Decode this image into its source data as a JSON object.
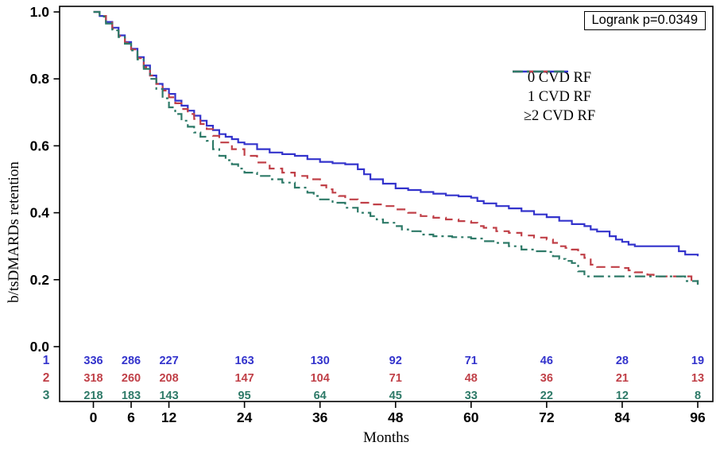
{
  "annotation": {
    "logrank_label": "Logrank p=0.0349"
  },
  "chart_data": {
    "type": "line",
    "subtype": "kaplan-meier-step-curves",
    "title": "",
    "xlabel": "Months",
    "ylabel": "b/tsDMARDs retention",
    "xlim": [
      0,
      96
    ],
    "ylim": [
      0.0,
      1.0
    ],
    "x_ticks": [
      0,
      6,
      12,
      24,
      36,
      48,
      60,
      72,
      84,
      96
    ],
    "y_ticks": [
      1.0,
      0.8,
      0.6,
      0.4,
      0.2,
      0.0
    ],
    "grid": "off",
    "legend_position": "upper-right-inside",
    "annotation": "Logrank p=0.0349",
    "series": [
      {
        "name": "0 CVD RF",
        "color": "#3333cc",
        "dash": "solid",
        "points": [
          [
            0,
            1.0
          ],
          [
            1,
            0.988
          ],
          [
            2,
            0.97
          ],
          [
            3,
            0.953
          ],
          [
            4,
            0.93
          ],
          [
            5,
            0.91
          ],
          [
            6,
            0.89
          ],
          [
            7,
            0.865
          ],
          [
            8,
            0.84
          ],
          [
            9,
            0.81
          ],
          [
            10,
            0.785
          ],
          [
            11,
            0.77
          ],
          [
            12,
            0.755
          ],
          [
            13,
            0.735
          ],
          [
            14,
            0.72
          ],
          [
            15,
            0.705
          ],
          [
            16,
            0.69
          ],
          [
            17,
            0.675
          ],
          [
            18,
            0.66
          ],
          [
            19,
            0.647
          ],
          [
            20,
            0.635
          ],
          [
            21,
            0.627
          ],
          [
            22,
            0.62
          ],
          [
            23,
            0.61
          ],
          [
            24,
            0.605
          ],
          [
            26,
            0.59
          ],
          [
            28,
            0.58
          ],
          [
            30,
            0.575
          ],
          [
            32,
            0.57
          ],
          [
            34,
            0.56
          ],
          [
            36,
            0.552
          ],
          [
            38,
            0.548
          ],
          [
            40,
            0.545
          ],
          [
            42,
            0.53
          ],
          [
            43,
            0.515
          ],
          [
            44,
            0.5
          ],
          [
            46,
            0.487
          ],
          [
            48,
            0.473
          ],
          [
            50,
            0.468
          ],
          [
            52,
            0.462
          ],
          [
            54,
            0.457
          ],
          [
            56,
            0.452
          ],
          [
            58,
            0.449
          ],
          [
            60,
            0.445
          ],
          [
            61,
            0.435
          ],
          [
            62,
            0.428
          ],
          [
            64,
            0.42
          ],
          [
            66,
            0.413
          ],
          [
            68,
            0.405
          ],
          [
            70,
            0.395
          ],
          [
            72,
            0.387
          ],
          [
            74,
            0.376
          ],
          [
            76,
            0.366
          ],
          [
            78,
            0.36
          ],
          [
            79,
            0.35
          ],
          [
            80,
            0.344
          ],
          [
            82,
            0.33
          ],
          [
            83,
            0.32
          ],
          [
            84,
            0.313
          ],
          [
            85,
            0.305
          ],
          [
            86,
            0.3
          ],
          [
            92,
            0.3
          ],
          [
            93,
            0.285
          ],
          [
            94,
            0.275
          ],
          [
            96,
            0.27
          ]
        ]
      },
      {
        "name": "1 CVD RF",
        "color": "#c04048",
        "dash": "dashed",
        "points": [
          [
            0,
            1.0
          ],
          [
            1,
            0.988
          ],
          [
            2,
            0.968
          ],
          [
            3,
            0.95
          ],
          [
            4,
            0.928
          ],
          [
            5,
            0.908
          ],
          [
            6,
            0.888
          ],
          [
            7,
            0.862
          ],
          [
            8,
            0.835
          ],
          [
            9,
            0.81
          ],
          [
            10,
            0.785
          ],
          [
            11,
            0.765
          ],
          [
            12,
            0.745
          ],
          [
            13,
            0.727
          ],
          [
            14,
            0.71
          ],
          [
            15,
            0.695
          ],
          [
            16,
            0.68
          ],
          [
            17,
            0.665
          ],
          [
            18,
            0.65
          ],
          [
            19,
            0.63
          ],
          [
            20,
            0.61
          ],
          [
            22,
            0.59
          ],
          [
            24,
            0.57
          ],
          [
            26,
            0.55
          ],
          [
            28,
            0.532
          ],
          [
            30,
            0.52
          ],
          [
            32,
            0.51
          ],
          [
            34,
            0.5
          ],
          [
            36,
            0.482
          ],
          [
            37,
            0.47
          ],
          [
            38,
            0.46
          ],
          [
            39,
            0.45
          ],
          [
            40,
            0.44
          ],
          [
            42,
            0.43
          ],
          [
            44,
            0.425
          ],
          [
            46,
            0.42
          ],
          [
            48,
            0.41
          ],
          [
            50,
            0.4
          ],
          [
            52,
            0.39
          ],
          [
            54,
            0.385
          ],
          [
            56,
            0.38
          ],
          [
            58,
            0.375
          ],
          [
            60,
            0.37
          ],
          [
            61,
            0.36
          ],
          [
            62,
            0.355
          ],
          [
            64,
            0.345
          ],
          [
            66,
            0.34
          ],
          [
            68,
            0.332
          ],
          [
            70,
            0.326
          ],
          [
            72,
            0.32
          ],
          [
            73,
            0.31
          ],
          [
            74,
            0.3
          ],
          [
            75,
            0.295
          ],
          [
            76,
            0.29
          ],
          [
            77,
            0.275
          ],
          [
            78,
            0.265
          ],
          [
            79,
            0.245
          ],
          [
            80,
            0.238
          ],
          [
            84,
            0.235
          ],
          [
            85,
            0.228
          ],
          [
            86,
            0.222
          ],
          [
            88,
            0.215
          ],
          [
            89,
            0.21
          ],
          [
            94,
            0.21
          ],
          [
            95,
            0.196
          ],
          [
            96,
            0.188
          ]
        ]
      },
      {
        "name": "≥2 CVD RF",
        "color": "#2e7a68",
        "dash": "dash-dot",
        "points": [
          [
            0,
            1.0
          ],
          [
            1,
            0.986
          ],
          [
            2,
            0.965
          ],
          [
            3,
            0.945
          ],
          [
            4,
            0.925
          ],
          [
            5,
            0.905
          ],
          [
            6,
            0.885
          ],
          [
            7,
            0.858
          ],
          [
            8,
            0.83
          ],
          [
            9,
            0.8
          ],
          [
            10,
            0.77
          ],
          [
            11,
            0.742
          ],
          [
            12,
            0.715
          ],
          [
            13,
            0.695
          ],
          [
            14,
            0.675
          ],
          [
            15,
            0.657
          ],
          [
            16,
            0.64
          ],
          [
            17,
            0.627
          ],
          [
            18,
            0.615
          ],
          [
            19,
            0.59
          ],
          [
            20,
            0.57
          ],
          [
            21,
            0.557
          ],
          [
            22,
            0.545
          ],
          [
            23,
            0.532
          ],
          [
            24,
            0.52
          ],
          [
            26,
            0.51
          ],
          [
            28,
            0.5
          ],
          [
            30,
            0.49
          ],
          [
            32,
            0.475
          ],
          [
            34,
            0.46
          ],
          [
            35,
            0.45
          ],
          [
            36,
            0.44
          ],
          [
            38,
            0.43
          ],
          [
            40,
            0.415
          ],
          [
            42,
            0.4
          ],
          [
            44,
            0.39
          ],
          [
            45,
            0.38
          ],
          [
            46,
            0.37
          ],
          [
            48,
            0.36
          ],
          [
            49,
            0.35
          ],
          [
            50,
            0.345
          ],
          [
            52,
            0.335
          ],
          [
            54,
            0.33
          ],
          [
            57,
            0.327
          ],
          [
            60,
            0.323
          ],
          [
            62,
            0.315
          ],
          [
            64,
            0.31
          ],
          [
            66,
            0.3
          ],
          [
            68,
            0.29
          ],
          [
            70,
            0.285
          ],
          [
            72,
            0.283
          ],
          [
            73,
            0.27
          ],
          [
            74,
            0.262
          ],
          [
            75,
            0.256
          ],
          [
            76,
            0.25
          ],
          [
            77,
            0.225
          ],
          [
            78,
            0.21
          ],
          [
            93,
            0.21
          ],
          [
            94,
            0.196
          ],
          [
            96,
            0.185
          ]
        ]
      }
    ],
    "risk_table": {
      "times": [
        0,
        6,
        12,
        24,
        36,
        48,
        60,
        72,
        84,
        96
      ],
      "rows": [
        {
          "label": "1",
          "color": "#3333cc",
          "values": [
            336,
            286,
            227,
            163,
            130,
            92,
            71,
            46,
            28,
            19
          ]
        },
        {
          "label": "2",
          "color": "#c04048",
          "values": [
            318,
            260,
            208,
            147,
            104,
            71,
            48,
            36,
            21,
            13
          ]
        },
        {
          "label": "3",
          "color": "#2e7a68",
          "values": [
            218,
            183,
            143,
            95,
            64,
            45,
            33,
            22,
            12,
            8
          ]
        }
      ]
    }
  }
}
